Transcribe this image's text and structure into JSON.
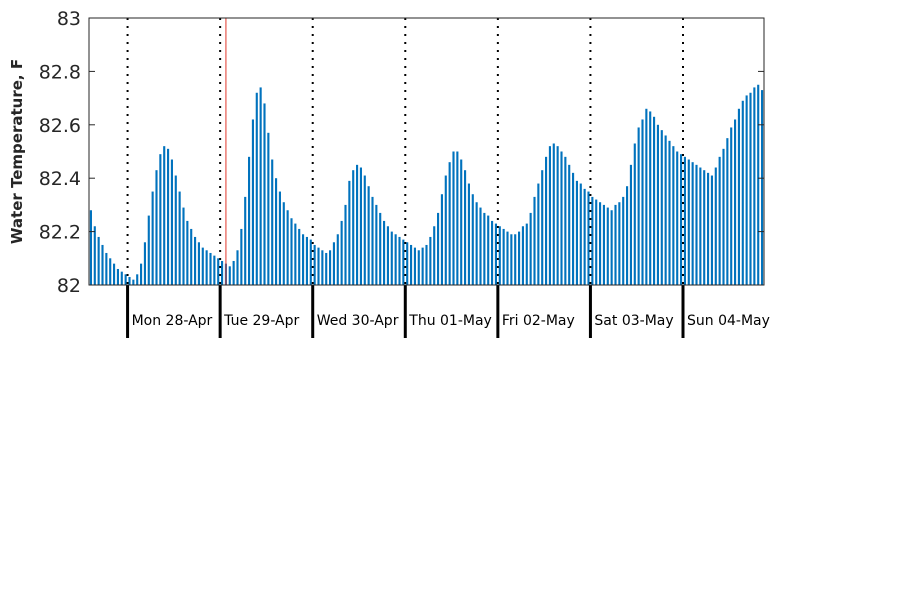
{
  "chart_data": {
    "type": "bar",
    "title": "",
    "xlabel": "",
    "ylabel": "Water Temperature, F",
    "ylim": [
      82,
      83
    ],
    "yticks": [
      "82",
      "82.2",
      "82.4",
      "82.6",
      "82.8",
      "83"
    ],
    "day_labels": [
      "Mon 28-Apr",
      "Tue 29-Apr",
      "Wed 30-Apr",
      "Thu 01-May",
      "Fri 02-May",
      "Sat 03-May",
      "Sun 04-May"
    ],
    "bars_per_day": 24,
    "first_bar_hour": 14,
    "current_marker_index": 35,
    "grid": false,
    "colors": {
      "bar": "#0072BD",
      "marker": "#E0382B",
      "axis": "#262626",
      "day_line": "#000000"
    },
    "values": [
      82.28,
      82.22,
      82.18,
      82.15,
      82.12,
      82.1,
      82.08,
      82.06,
      82.05,
      82.04,
      82.03,
      82.02,
      82.04,
      82.08,
      82.16,
      82.26,
      82.35,
      82.43,
      82.49,
      82.52,
      82.51,
      82.47,
      82.41,
      82.35,
      82.29,
      82.24,
      82.21,
      82.18,
      82.16,
      82.14,
      82.13,
      82.12,
      82.11,
      82.1,
      82.09,
      82.08,
      82.07,
      82.09,
      82.13,
      82.21,
      82.33,
      82.48,
      82.62,
      82.72,
      82.74,
      82.68,
      82.57,
      82.47,
      82.4,
      82.35,
      82.31,
      82.28,
      82.25,
      82.23,
      82.21,
      82.19,
      82.18,
      82.17,
      82.15,
      82.14,
      82.13,
      82.12,
      82.13,
      82.16,
      82.19,
      82.24,
      82.3,
      82.39,
      82.43,
      82.45,
      82.44,
      82.41,
      82.37,
      82.33,
      82.3,
      82.27,
      82.24,
      82.22,
      82.2,
      82.19,
      82.18,
      82.17,
      82.16,
      82.15,
      82.14,
      82.13,
      82.14,
      82.15,
      82.18,
      82.22,
      82.27,
      82.34,
      82.41,
      82.46,
      82.5,
      82.5,
      82.47,
      82.43,
      82.38,
      82.34,
      82.31,
      82.29,
      82.27,
      82.26,
      82.24,
      82.23,
      82.22,
      82.21,
      82.2,
      82.19,
      82.19,
      82.2,
      82.22,
      82.23,
      82.27,
      82.33,
      82.38,
      82.43,
      82.48,
      82.52,
      82.53,
      82.52,
      82.5,
      82.48,
      82.45,
      82.42,
      82.39,
      82.38,
      82.36,
      82.35,
      82.33,
      82.32,
      82.31,
      82.3,
      82.29,
      82.28,
      82.3,
      82.31,
      82.33,
      82.37,
      82.45,
      82.53,
      82.59,
      82.62,
      82.66,
      82.65,
      82.63,
      82.6,
      82.58,
      82.56,
      82.54,
      82.52,
      82.5,
      82.49,
      82.48,
      82.47,
      82.46,
      82.45,
      82.44,
      82.43,
      82.42,
      82.41,
      82.44,
      82.48,
      82.51,
      82.55,
      82.59,
      82.62,
      82.66,
      82.69,
      82.71,
      82.72,
      82.74,
      82.75,
      82.73
    ]
  }
}
